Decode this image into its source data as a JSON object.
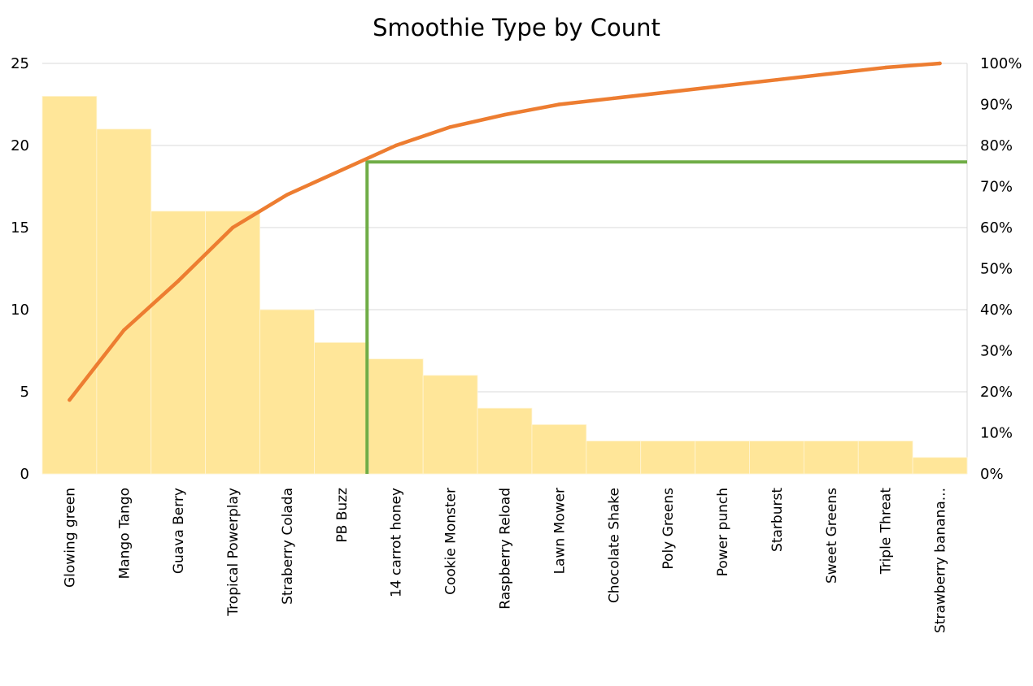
{
  "chart_data": {
    "type": "bar",
    "title": "Smoothie Type by Count",
    "categories": [
      "Glowing green",
      "Mango Tango",
      "Guava Berry",
      "Tropical Powerplay",
      "Straberry Colada",
      "PB Buzz",
      "14 carrot honey",
      "Cookie Monster",
      "Raspberry Reload",
      "Lawn Mower",
      "Chocolate Shake",
      "Poly Greens",
      "Power punch",
      "Starburst",
      "Sweet Greens",
      "Triple Threat",
      "Strawberry banana..."
    ],
    "series": [
      {
        "type": "bar",
        "values": [
          23,
          21,
          16,
          16,
          10,
          8,
          7,
          6,
          4,
          3,
          2,
          2,
          2,
          2,
          2,
          2,
          1
        ]
      },
      {
        "type": "line",
        "axis": "secondary",
        "values": [
          18,
          35,
          47,
          60,
          68,
          74,
          80,
          84.5,
          87.5,
          90,
          91.5,
          93,
          94.5,
          96,
          97.5,
          99,
          100
        ]
      }
    ],
    "cutoff_line": {
      "at_category": "14 carrot honey",
      "value_percent": 76
    },
    "ylim": [
      0,
      25
    ],
    "y_ticks": [
      "0",
      "5",
      "10",
      "15",
      "20",
      "25"
    ],
    "y2lim": [
      0,
      100
    ],
    "y2_ticks": [
      "0%",
      "10%",
      "20%",
      "30%",
      "40%",
      "50%",
      "60%",
      "70%",
      "80%",
      "90%",
      "100%"
    ],
    "grid": true,
    "colors": {
      "bar": "#FFE699",
      "line": "#ED7D31",
      "cutoff": "#70AD47",
      "grid": "#D9D9D9"
    }
  }
}
